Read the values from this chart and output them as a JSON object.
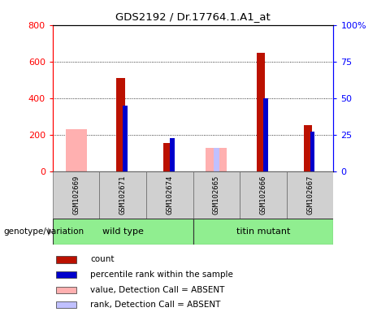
{
  "title": "GDS2192 / Dr.17764.1.A1_at",
  "samples": [
    "GSM102669",
    "GSM102671",
    "GSM102674",
    "GSM102665",
    "GSM102666",
    "GSM102667"
  ],
  "count": [
    null,
    510,
    155,
    null,
    650,
    255
  ],
  "percentile_rank_pct": [
    null,
    45,
    23,
    null,
    50,
    27
  ],
  "value_absent": [
    230,
    null,
    null,
    130,
    null,
    null
  ],
  "rank_absent_pct": [
    null,
    null,
    null,
    16,
    null,
    null
  ],
  "left_ylim": [
    0,
    800
  ],
  "right_ylim": [
    0,
    100
  ],
  "left_yticks": [
    0,
    200,
    400,
    600,
    800
  ],
  "right_yticks": [
    0,
    25,
    50,
    75,
    100
  ],
  "right_yticklabels": [
    "0",
    "25",
    "50",
    "75",
    "100%"
  ],
  "colors": {
    "count": "#bb1100",
    "percentile_rank": "#0000cc",
    "value_absent": "#ffb0b0",
    "rank_absent": "#c0c0ff"
  },
  "legend_items": [
    {
      "label": "count",
      "color": "#bb1100"
    },
    {
      "label": "percentile rank within the sample",
      "color": "#0000cc"
    },
    {
      "label": "value, Detection Call = ABSENT",
      "color": "#ffb0b0"
    },
    {
      "label": "rank, Detection Call = ABSENT",
      "color": "#c0c0ff"
    }
  ],
  "wt_label": "wild type",
  "tm_label": "titin mutant",
  "genotype_label": "genotype/variation",
  "group_color": "#90ee90"
}
